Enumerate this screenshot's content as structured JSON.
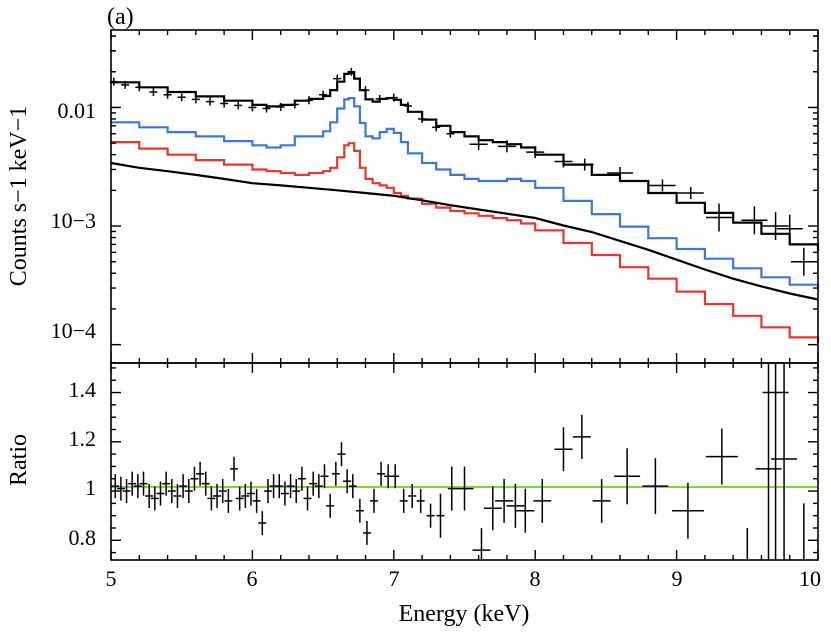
{
  "panel_label": "(a)",
  "chart_data": [
    {
      "type": "line",
      "panel": "top",
      "ylabel": "Counts s−1 keV−1",
      "yscale": "log",
      "xlim": [
        5,
        10
      ],
      "ylim": [
        7e-05,
        0.045
      ],
      "ytick_labels": [
        "0.01",
        "10−3",
        "10−4"
      ],
      "grid": false,
      "series": [
        {
          "color": "#000000",
          "style": "step-model-total",
          "x": [
            5.0,
            5.2,
            5.4,
            5.6,
            5.8,
            6.0,
            6.1,
            6.2,
            6.3,
            6.4,
            6.5,
            6.55,
            6.6,
            6.65,
            6.68,
            6.72,
            6.76,
            6.8,
            6.85,
            6.9,
            6.95,
            7.0,
            7.05,
            7.1,
            7.2,
            7.3,
            7.4,
            7.5,
            7.6,
            7.7,
            7.8,
            7.9,
            8.0,
            8.2,
            8.4,
            8.6,
            8.8,
            9.0,
            9.2,
            9.4,
            9.6,
            9.8,
            10.0
          ],
          "values": [
            0.0163,
            0.0148,
            0.0135,
            0.0124,
            0.0114,
            0.0105,
            0.0102,
            0.0105,
            0.0114,
            0.0118,
            0.0125,
            0.014,
            0.0165,
            0.0192,
            0.0195,
            0.0175,
            0.014,
            0.0117,
            0.0112,
            0.0118,
            0.012,
            0.0116,
            0.0105,
            0.0092,
            0.0079,
            0.007,
            0.0062,
            0.0057,
            0.0053,
            0.0051,
            0.0049,
            0.0046,
            0.004,
            0.0033,
            0.0027,
            0.0024,
            0.0019,
            0.00157,
            0.00129,
            0.00107,
            0.00086,
            0.0007,
            0.00062
          ]
        },
        {
          "color": "#3a78d8",
          "style": "step-model",
          "x": [
            5.0,
            5.2,
            5.4,
            5.6,
            5.8,
            6.0,
            6.1,
            6.2,
            6.3,
            6.4,
            6.5,
            6.55,
            6.6,
            6.65,
            6.68,
            6.72,
            6.76,
            6.8,
            6.85,
            6.9,
            6.95,
            7.0,
            7.05,
            7.1,
            7.2,
            7.3,
            7.4,
            7.5,
            7.6,
            7.7,
            7.8,
            7.9,
            8.0,
            8.2,
            8.4,
            8.6,
            8.8,
            9.0,
            9.2,
            9.4,
            9.6,
            9.8,
            10.0
          ],
          "values": [
            0.0075,
            0.0068,
            0.0062,
            0.0057,
            0.0052,
            0.0048,
            0.0046,
            0.0048,
            0.0057,
            0.0057,
            0.0063,
            0.0075,
            0.0098,
            0.0117,
            0.012,
            0.0102,
            0.0074,
            0.0057,
            0.0055,
            0.0062,
            0.0066,
            0.0061,
            0.0051,
            0.0041,
            0.0034,
            0.003,
            0.0027,
            0.0025,
            0.0024,
            0.0024,
            0.0025,
            0.0024,
            0.0021,
            0.00163,
            0.00126,
            0.00099,
            0.00079,
            0.00064,
            0.00053,
            0.00044,
            0.00037,
            0.00032,
            0.00029
          ]
        },
        {
          "color": "#e8362a",
          "style": "step-model",
          "x": [
            5.0,
            5.2,
            5.4,
            5.6,
            5.8,
            6.0,
            6.1,
            6.2,
            6.3,
            6.4,
            6.5,
            6.55,
            6.6,
            6.65,
            6.68,
            6.72,
            6.76,
            6.8,
            6.85,
            6.9,
            6.95,
            7.0,
            7.05,
            7.1,
            7.2,
            7.3,
            7.4,
            7.5,
            7.6,
            7.7,
            7.8,
            7.9,
            8.0,
            8.2,
            8.4,
            8.6,
            8.8,
            9.0,
            9.2,
            9.4,
            9.6,
            9.8,
            10.0
          ],
          "values": [
            0.0051,
            0.0045,
            0.004,
            0.0036,
            0.0033,
            0.003,
            0.0029,
            0.0028,
            0.0027,
            0.0028,
            0.0029,
            0.0031,
            0.0038,
            0.0048,
            0.005,
            0.0043,
            0.0031,
            0.0025,
            0.0023,
            0.0022,
            0.0021,
            0.0019,
            0.0018,
            0.0017,
            0.00154,
            0.00143,
            0.00134,
            0.00128,
            0.00122,
            0.00117,
            0.00112,
            0.00105,
            0.00092,
            0.00072,
            0.00057,
            0.00045,
            0.00036,
            0.00028,
            0.00022,
            0.000175,
            0.00014,
            0.000115,
            0.000103
          ]
        },
        {
          "color": "#000000",
          "style": "smooth-model",
          "x": [
            5.0,
            5.2,
            5.4,
            5.6,
            5.8,
            6.0,
            6.2,
            6.4,
            6.6,
            6.8,
            7.0,
            7.2,
            7.4,
            7.6,
            7.8,
            8.0,
            8.2,
            8.4,
            8.6,
            8.8,
            9.0,
            9.2,
            9.4,
            9.6,
            9.8,
            10.0
          ],
          "values": [
            0.0034,
            0.0031,
            0.0029,
            0.0027,
            0.0025,
            0.0023,
            0.0022,
            0.0021,
            0.002,
            0.0019,
            0.0018,
            0.00165,
            0.0015,
            0.00138,
            0.00127,
            0.00117,
            0.00101,
            0.00089,
            0.00075,
            0.00063,
            0.00052,
            0.00043,
            0.00036,
            0.00031,
            0.00027,
            0.00024
          ]
        },
        {
          "color": "#000000",
          "style": "data-crosses",
          "x": [
            5.02,
            5.1,
            5.2,
            5.3,
            5.4,
            5.5,
            5.6,
            5.7,
            5.8,
            5.9,
            6.0,
            6.1,
            6.2,
            6.3,
            6.4,
            6.5,
            6.6,
            6.7,
            6.8,
            6.9,
            7.0,
            7.1,
            7.2,
            7.3,
            7.4,
            7.6,
            7.8,
            8.0,
            8.2,
            8.35,
            8.6,
            8.9,
            9.1,
            9.3,
            9.55,
            9.7,
            9.8,
            9.9
          ],
          "values": [
            0.0165,
            0.0155,
            0.0148,
            0.0135,
            0.0128,
            0.0122,
            0.0117,
            0.0112,
            0.0108,
            0.0104,
            0.01,
            0.0098,
            0.0101,
            0.0106,
            0.0115,
            0.0128,
            0.0175,
            0.02,
            0.014,
            0.0118,
            0.0121,
            0.0103,
            0.008,
            0.0068,
            0.006,
            0.0049,
            0.0047,
            0.0042,
            0.0035,
            0.0033,
            0.0028,
            0.0022,
            0.0019,
            0.00118,
            0.00112,
            0.001,
            0.00095,
            0.0005
          ]
        }
      ]
    },
    {
      "type": "scatter",
      "panel": "bottom",
      "xlabel": "Energy (keV)",
      "ylabel": "Ratio",
      "xlim": [
        5,
        10
      ],
      "ylim": [
        0.72,
        1.52
      ],
      "xtick_labels": [
        "5",
        "6",
        "7",
        "8",
        "9",
        "10"
      ],
      "ytick_labels": [
        "0.8",
        "1",
        "1.2",
        "1.4"
      ],
      "grid": false,
      "reference_line": {
        "y": 1.0,
        "color": "#7ddc2a"
      },
      "series": [
        {
          "color": "#000000",
          "style": "data-crosses",
          "x": [
            5.03,
            5.07,
            5.11,
            5.15,
            5.19,
            5.23,
            5.27,
            5.31,
            5.35,
            5.39,
            5.43,
            5.47,
            5.51,
            5.55,
            5.59,
            5.63,
            5.67,
            5.71,
            5.75,
            5.79,
            5.83,
            5.87,
            5.91,
            5.95,
            5.99,
            6.03,
            6.07,
            6.11,
            6.15,
            6.19,
            6.23,
            6.27,
            6.31,
            6.35,
            6.39,
            6.43,
            6.47,
            6.51,
            6.55,
            6.59,
            6.63,
            6.67,
            6.71,
            6.76,
            6.81,
            6.86,
            6.91,
            6.96,
            7.01,
            7.07,
            7.13,
            7.19,
            7.26,
            7.33,
            7.41,
            7.5,
            7.62,
            7.7,
            7.78,
            7.86,
            7.93,
            8.05,
            8.2,
            8.33,
            8.47,
            8.65,
            8.85,
            9.08,
            9.32,
            9.5,
            9.65,
            9.7,
            9.76,
            9.9
          ],
          "values": [
            1.02,
            1.01,
            1.0,
            1.03,
            1.02,
            1.03,
            0.98,
            0.97,
            0.99,
            1.03,
            1.0,
            0.98,
            1.02,
            1.0,
            1.05,
            1.07,
            1.03,
            0.97,
            0.98,
            1.0,
            0.96,
            1.09,
            0.97,
            0.98,
            0.99,
            0.96,
            0.87,
            1.0,
            1.02,
            1.02,
            0.99,
            1.02,
            1.0,
            1.05,
            0.97,
            1.03,
            1.02,
            1.06,
            0.94,
            1.07,
            1.15,
            1.04,
            1.02,
            0.92,
            0.83,
            0.96,
            1.07,
            1.06,
            1.06,
            0.96,
            0.98,
            0.96,
            0.9,
            0.9,
            1.01,
            1.01,
            0.76,
            0.93,
            0.96,
            0.94,
            0.92,
            0.96,
            1.17,
            1.22,
            0.96,
            1.06,
            1.02,
            0.92,
            1.14,
            0.7,
            1.09,
            1.4,
            1.13,
            0.8
          ]
        }
      ]
    }
  ]
}
